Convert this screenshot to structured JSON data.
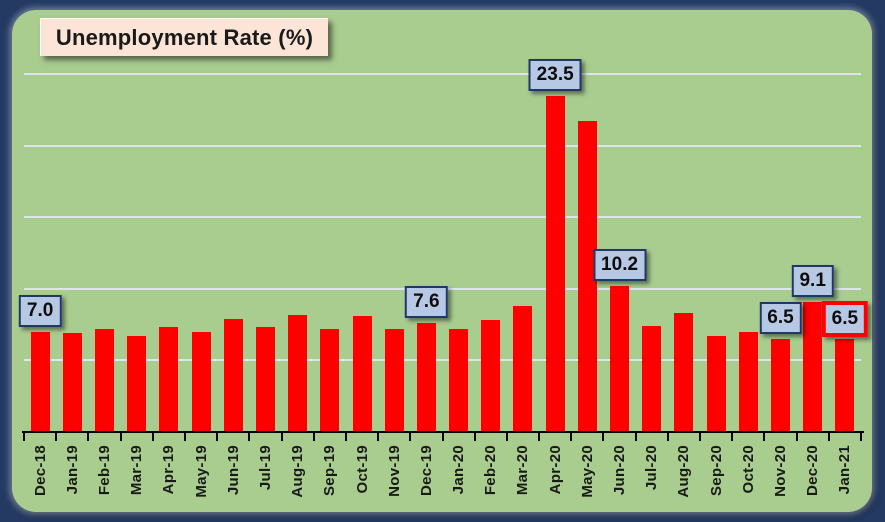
{
  "chart_data": {
    "type": "bar",
    "title": "Unemployment Rate (%)",
    "xlabel": "",
    "ylabel": "",
    "categories": [
      "Dec-18",
      "Jan-19",
      "Feb-19",
      "Mar-19",
      "Apr-19",
      "May-19",
      "Jun-19",
      "Jul-19",
      "Aug-19",
      "Sep-19",
      "Oct-19",
      "Nov-19",
      "Dec-19",
      "Jan-20",
      "Feb-20",
      "Mar-20",
      "Apr-20",
      "May-20",
      "Jun-20",
      "Jul-20",
      "Aug-20",
      "Sep-20",
      "Oct-20",
      "Nov-20",
      "Dec-20",
      "Jan-21"
    ],
    "values": [
      7.0,
      6.9,
      7.2,
      6.7,
      7.3,
      7.0,
      7.9,
      7.3,
      8.2,
      7.2,
      8.1,
      7.2,
      7.6,
      7.2,
      7.8,
      8.8,
      23.5,
      21.7,
      10.2,
      7.4,
      8.3,
      6.7,
      7.0,
      6.5,
      9.1,
      6.5
    ],
    "ylim": [
      0,
      25.7
    ],
    "grid_step": 5,
    "grid_max": 25,
    "grid_visible": true,
    "legend_position": "none",
    "x_tick_rotation_degrees": 90,
    "callouts": [
      {
        "index": 0,
        "label": "7.0",
        "style": "default"
      },
      {
        "index": 12,
        "label": "7.6",
        "style": "default"
      },
      {
        "index": 16,
        "label": "23.5",
        "style": "default"
      },
      {
        "index": 18,
        "label": "10.2",
        "style": "default"
      },
      {
        "index": 23,
        "label": "6.5",
        "style": "default"
      },
      {
        "index": 24,
        "label": "9.1",
        "style": "default"
      },
      {
        "index": 25,
        "label": "6.5",
        "style": "highlight-red"
      }
    ],
    "colors": {
      "bar": "#fe0000",
      "plot_background": "#a9cc8f",
      "frame": "#243a63",
      "gridline": "#dde4eb",
      "axis": "#000000",
      "callout_fill": "#b7c8e5",
      "callout_border": "#1f3864",
      "callout_border_highlight": "#fe0000",
      "title_fill": "#fce4d6",
      "text": "#1a1a1a"
    }
  }
}
